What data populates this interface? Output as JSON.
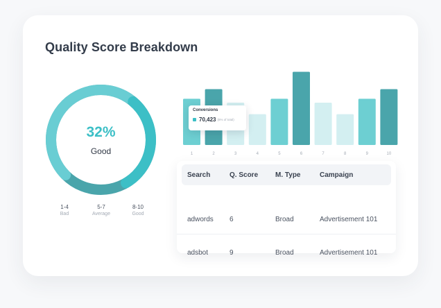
{
  "title": "Quality Score Breakdown",
  "donut": {
    "percent_label": "32%",
    "status": "Good",
    "value_percent": 32,
    "colors": {
      "light": "#69cdd3",
      "mid": "#3cbfc6",
      "dark": "#4aa5ab"
    }
  },
  "legend": [
    {
      "range": "1-4",
      "name": "Bad"
    },
    {
      "range": "5-7",
      "name": "Average"
    },
    {
      "range": "8-10",
      "name": "Good"
    }
  ],
  "chart_data": {
    "type": "bar",
    "categories": [
      "1",
      "2",
      "3",
      "4",
      "5",
      "6",
      "7",
      "8",
      "9",
      "10"
    ],
    "values": [
      48,
      58,
      44,
      32,
      48,
      76,
      44,
      32,
      48,
      58
    ],
    "ylim": [
      0,
      80
    ],
    "colors": [
      "#6dcfd2",
      "#4aa5ab",
      "#d3eff1",
      "#d3eff1",
      "#6dcfd2",
      "#4aa5ab",
      "#d3eff1",
      "#d3eff1",
      "#6dcfd2",
      "#4aa5ab"
    ],
    "tooltip": {
      "title": "Conversions",
      "value": "70,423",
      "note": "(6% of total)"
    },
    "grid": false
  },
  "table": {
    "headers": [
      "Search",
      "Q. Score",
      "M. Type",
      "Campaign"
    ],
    "rows": [
      [
        "adwords",
        "6",
        "Broad",
        "Advertisement 101"
      ],
      [
        "adsbot",
        "9",
        "Broad",
        "Advertisement 101"
      ]
    ]
  }
}
